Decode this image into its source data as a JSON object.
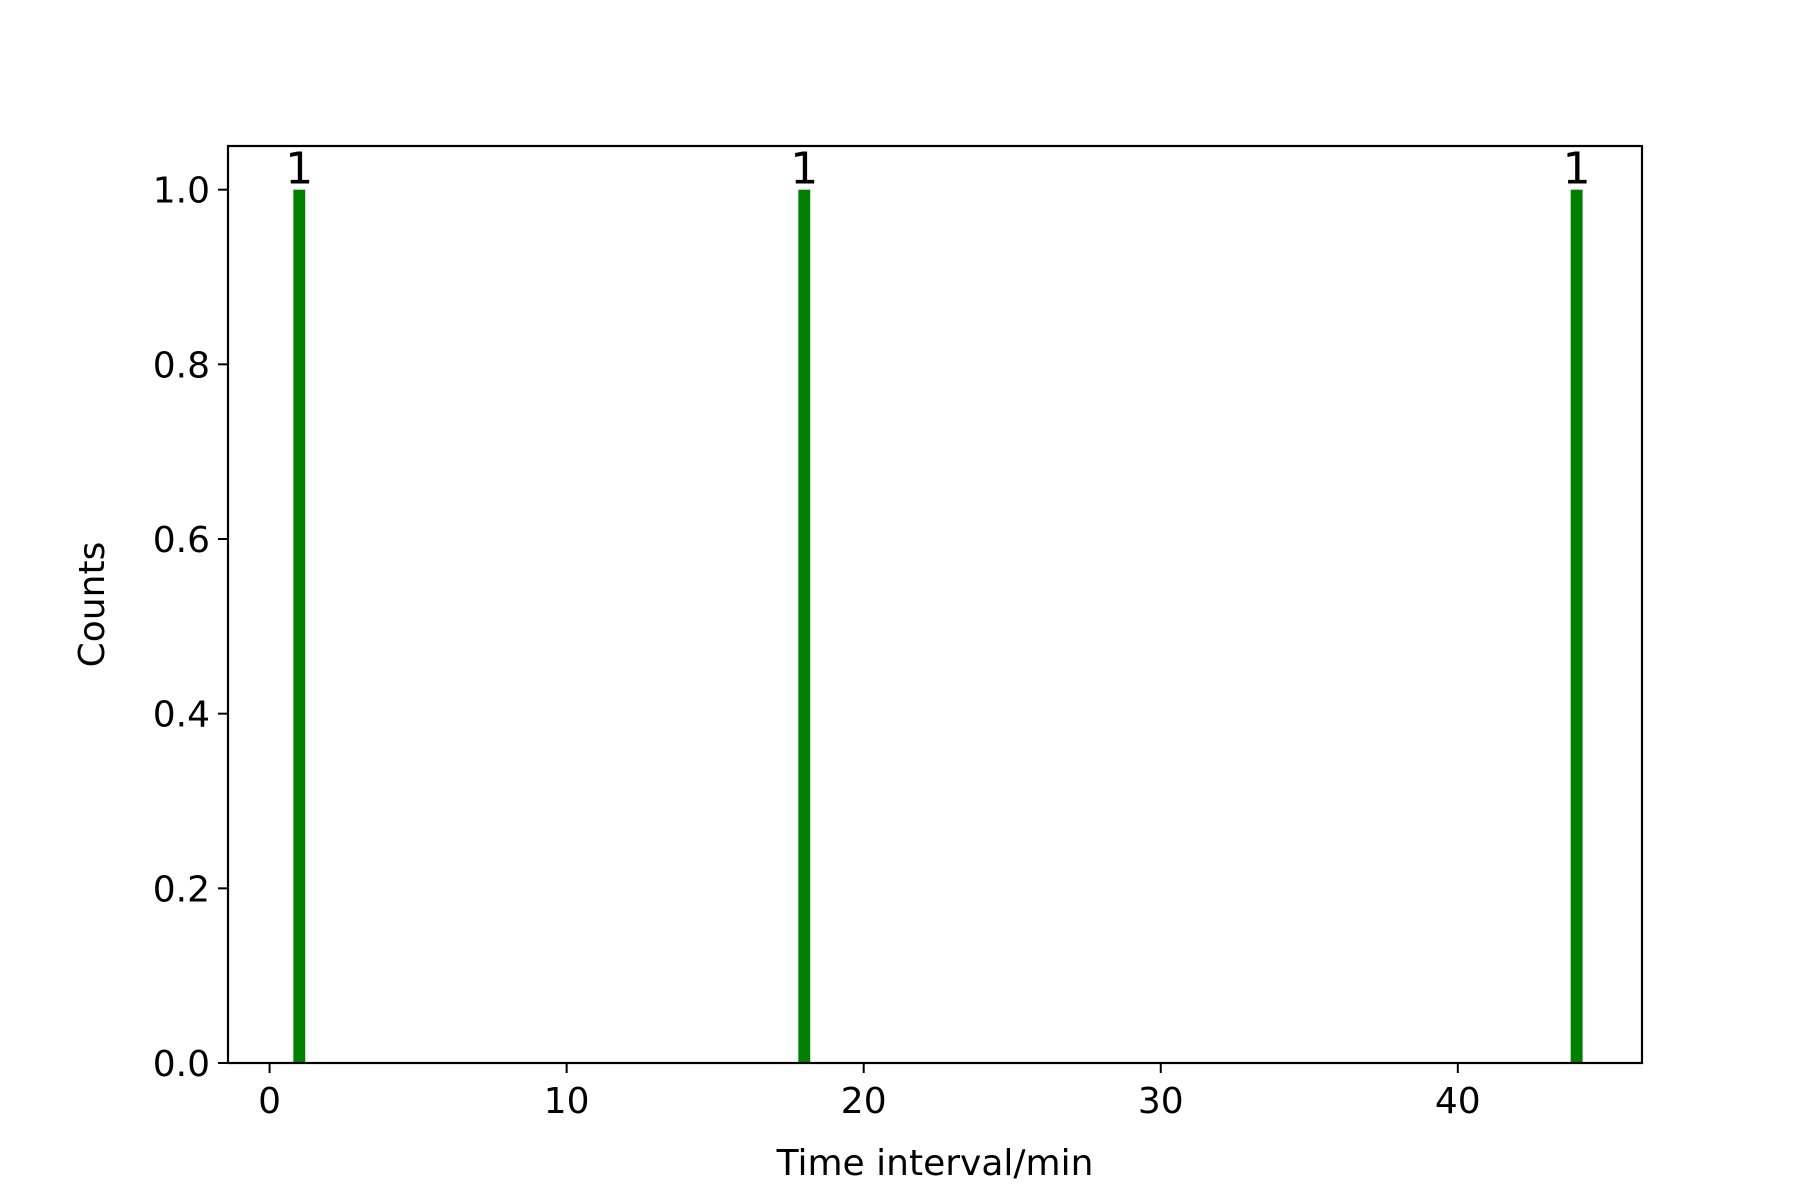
{
  "chart_data": {
    "type": "bar",
    "title": "",
    "xlabel": "Time interval/min",
    "ylabel": "Counts",
    "x": [
      1,
      18,
      44
    ],
    "values": [
      1,
      1,
      1
    ],
    "data_labels": [
      "1",
      "1",
      "1"
    ],
    "xlim": [
      -1.4,
      46.2
    ],
    "ylim": [
      0,
      1.05
    ],
    "xticks": [
      0,
      10,
      20,
      30,
      40
    ],
    "xtick_labels": [
      "0",
      "10",
      "20",
      "30",
      "40"
    ],
    "yticks": [
      0.0,
      0.2,
      0.4,
      0.6,
      0.8,
      1.0
    ],
    "ytick_labels": [
      "0.0",
      "0.2",
      "0.4",
      "0.6",
      "0.8",
      "1.0"
    ],
    "bar_width": 0.4,
    "bar_color": "#008000",
    "grid": false,
    "legend": false
  }
}
